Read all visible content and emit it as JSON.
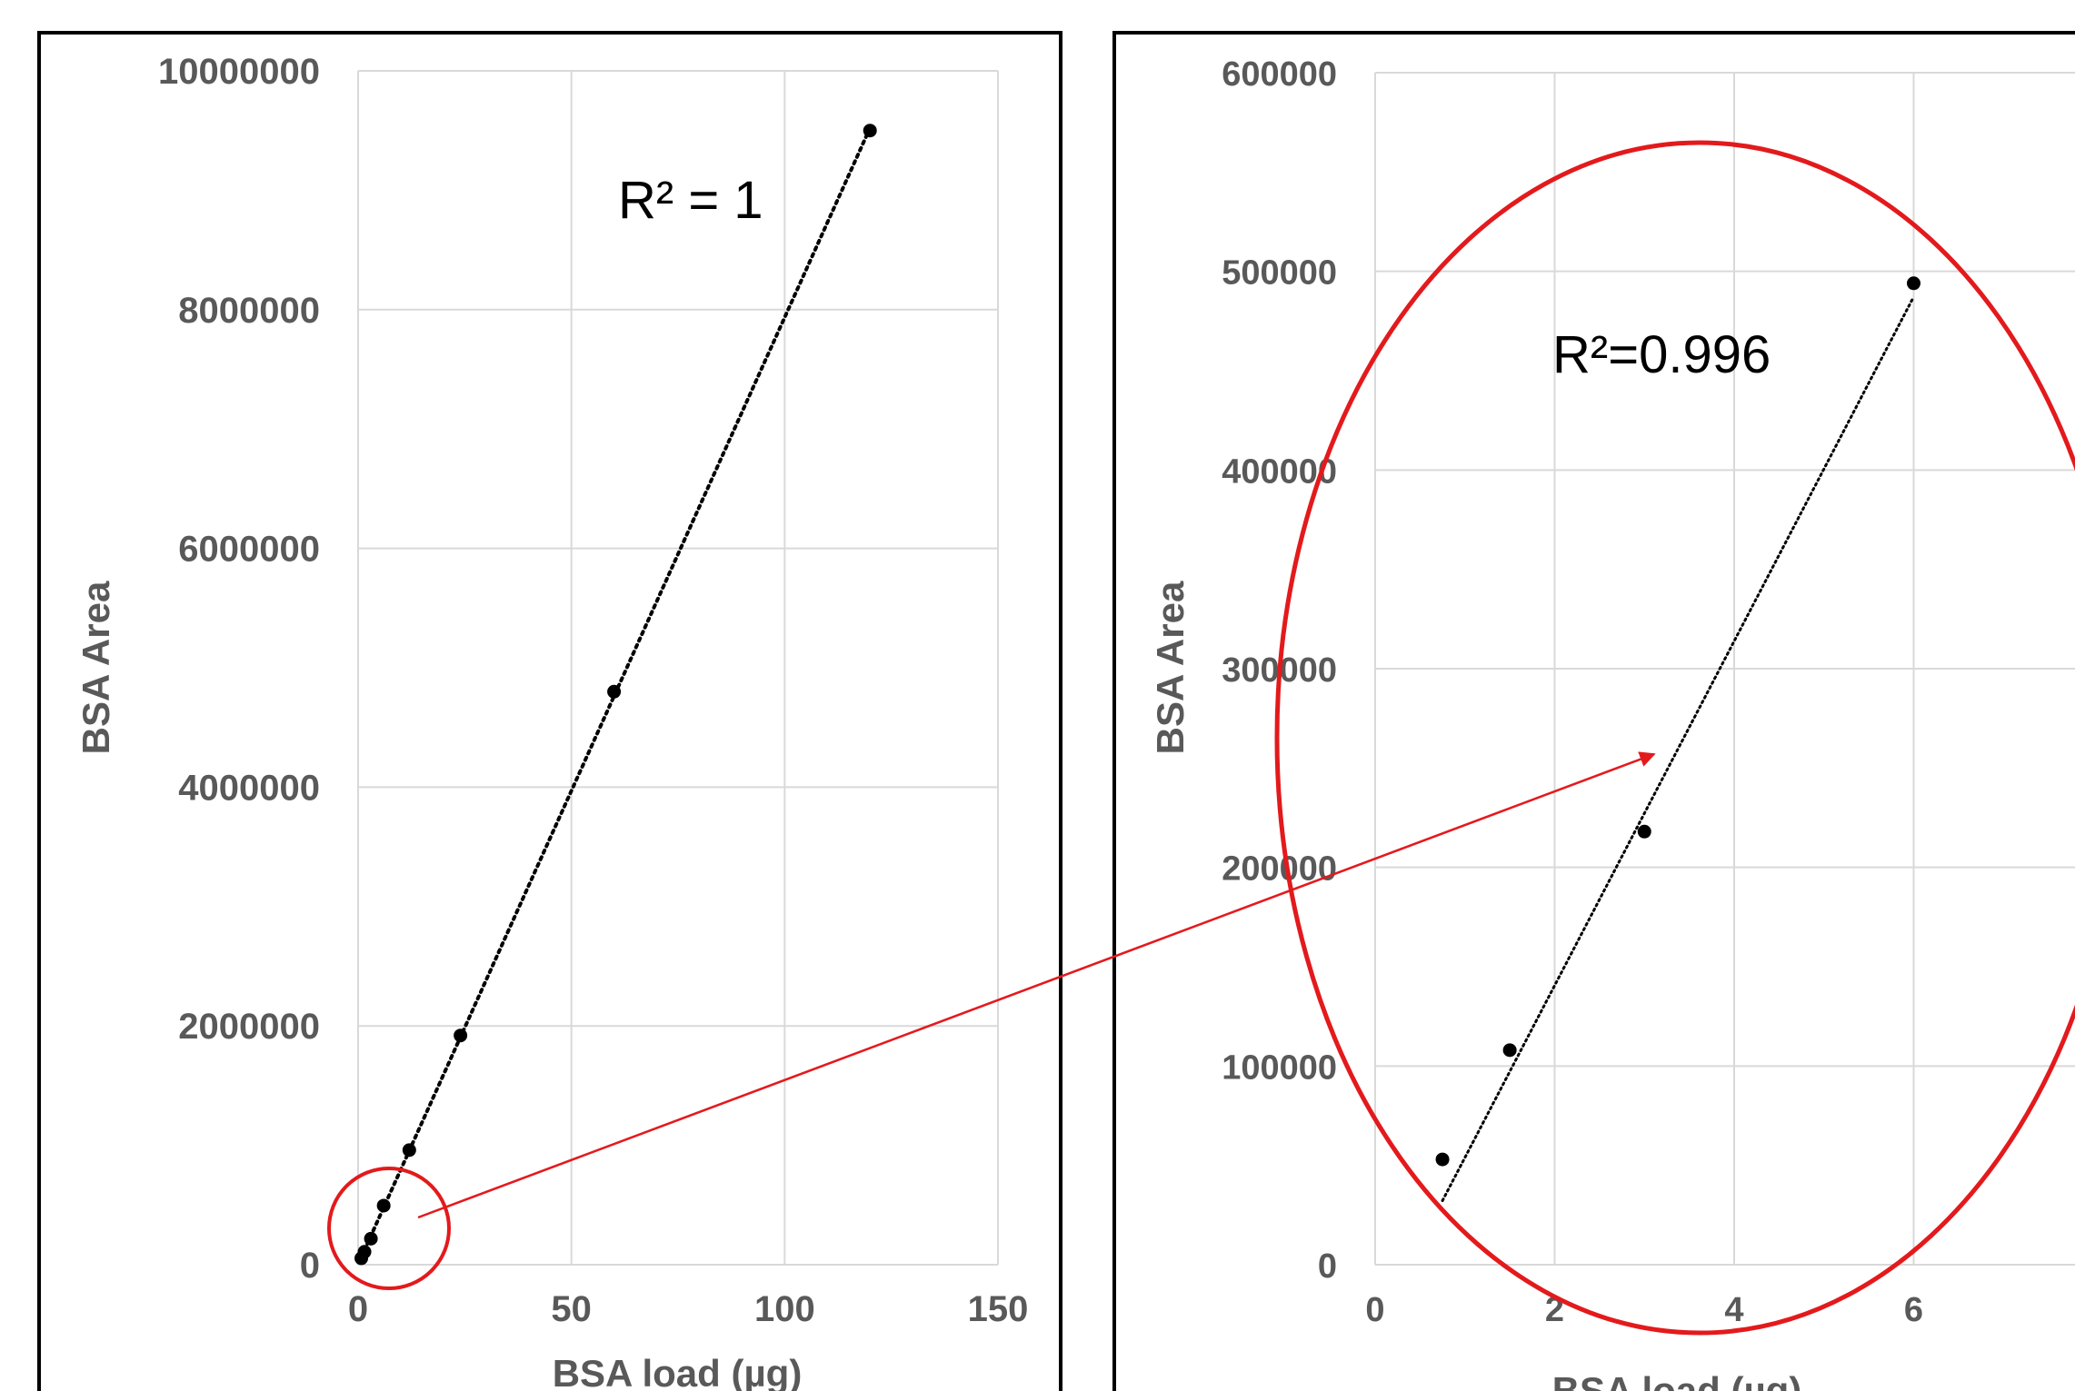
{
  "chart_data": [
    {
      "type": "scatter",
      "xlabel": "BSA load (µg)",
      "ylabel": "BSA Area",
      "xlim": [
        0,
        150
      ],
      "ylim": [
        0,
        10000000
      ],
      "xticks": [
        "0",
        "50",
        "100",
        "150"
      ],
      "yticks": [
        "0",
        "2000000",
        "4000000",
        "6000000",
        "8000000",
        "10000000"
      ],
      "grid": true,
      "series": [
        {
          "x": [
            0.75,
            1.5,
            3,
            6,
            12,
            24,
            60,
            120
          ],
          "y": [
            54000,
            108000,
            218000,
            495000,
            960000,
            1920000,
            4800000,
            9500000
          ]
        }
      ],
      "trendline": "linear, dotted",
      "annotation": "R² = 1"
    },
    {
      "type": "scatter",
      "xlabel": "BSA load (µg)",
      "ylabel": "BSA Area",
      "xlim": [
        0,
        8
      ],
      "ylim": [
        0,
        600000
      ],
      "xticks": [
        "0",
        "2",
        "4",
        "6"
      ],
      "yticks": [
        "0",
        "100000",
        "200000",
        "300000",
        "400000",
        "500000",
        "600000"
      ],
      "grid": true,
      "series": [
        {
          "x": [
            0.75,
            1.5,
            3,
            6
          ],
          "y": [
            53000,
            108000,
            218000,
            494000
          ]
        }
      ],
      "trendline": "linear, dotted",
      "annotation": "R²=0.996"
    }
  ],
  "colors": {
    "highlight": "#e31a1c",
    "gridline": "#d9d9d9",
    "tick_text": "#595959",
    "marker": "#000000"
  }
}
